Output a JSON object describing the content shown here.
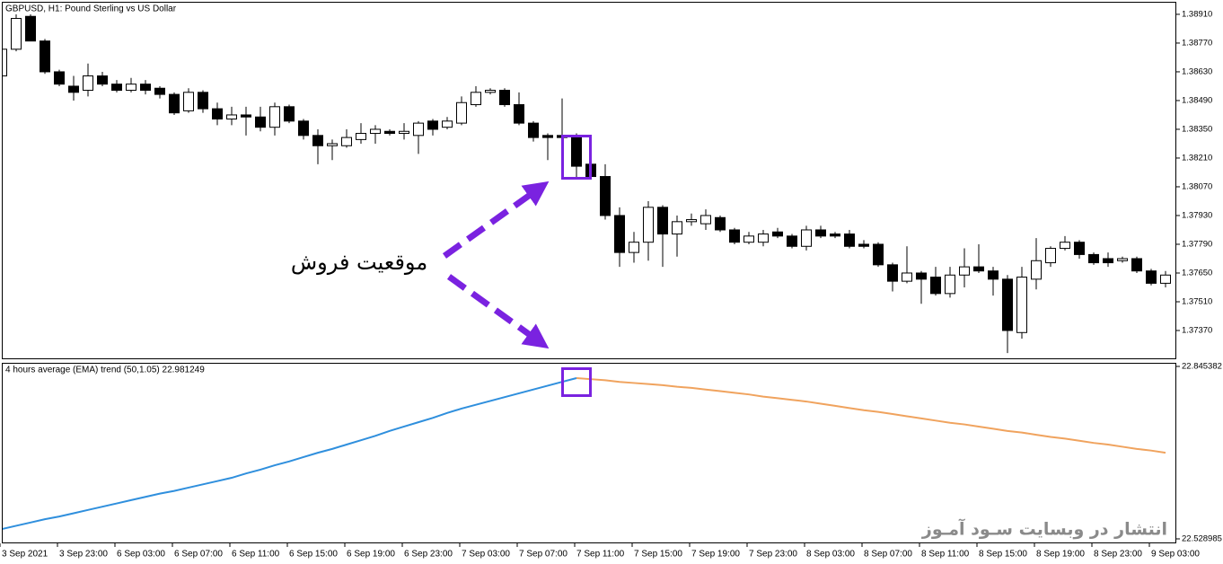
{
  "chart_data": [
    {
      "type": "candlestick",
      "title": "GBPUSD, H1:  Pound Sterling vs US Dollar",
      "annotations": [
        "موقعیت فروش",
        "انتشار در وبسایت سـود آمـوز"
      ],
      "bull_color": "#ffffff",
      "bear_color": "#000000",
      "categories": [
        "3 Sep 2021",
        null,
        null,
        null,
        "3 Sep 23:00",
        null,
        null,
        null,
        "6 Sep 03:00",
        null,
        null,
        null,
        "6 Sep 07:00",
        null,
        null,
        null,
        "6 Sep 11:00",
        null,
        null,
        null,
        "6 Sep 15:00",
        null,
        null,
        null,
        "6 Sep 19:00",
        null,
        null,
        null,
        "6 Sep 23:00",
        null,
        null,
        null,
        "7 Sep 03:00",
        null,
        null,
        null,
        "7 Sep 07:00",
        null,
        null,
        null,
        "7 Sep 11:00",
        null,
        null,
        null,
        "7 Sep 15:00",
        null,
        null,
        null,
        "7 Sep 19:00",
        null,
        null,
        null,
        "7 Sep 23:00",
        null,
        null,
        null,
        "8 Sep 03:00",
        null,
        null,
        null,
        "8 Sep 07:00",
        null,
        null,
        null,
        "8 Sep 11:00",
        null,
        null,
        null,
        "8 Sep 15:00",
        null,
        null,
        null,
        "8 Sep 19:00",
        null,
        null,
        null,
        "8 Sep 23:00",
        null,
        null,
        null,
        "9 Sep 03:00",
        null
      ],
      "open": [
        1.3861,
        1.3874,
        1.389,
        1.3878,
        1.3863,
        1.3856,
        1.3854,
        1.3861,
        1.3857,
        1.3854,
        1.3857,
        1.3855,
        1.3852,
        1.3844,
        1.3853,
        1.3845,
        1.384,
        1.3842,
        1.3841,
        1.3836,
        1.3846,
        1.3839,
        1.3832,
        1.3827,
        1.3827,
        1.383,
        1.3833,
        1.3834,
        1.3833,
        1.3832,
        1.3839,
        1.3836,
        1.3838,
        1.3847,
        1.3853,
        1.3854,
        1.3847,
        1.3838,
        1.3832,
        1.3832,
        1.3832,
        1.3818,
        1.3812,
        1.3793,
        1.3775,
        1.378,
        1.3797,
        1.3784,
        1.379,
        1.3789,
        1.3792,
        1.3786,
        1.378,
        1.378,
        1.3785,
        1.3783,
        1.3778,
        1.3786,
        1.3784,
        1.3784,
        1.3779,
        1.3779,
        1.3769,
        1.3761,
        1.3765,
        1.3763,
        1.3755,
        1.3764,
        1.3768,
        1.3766,
        1.3762,
        1.3736,
        1.3762,
        1.377,
        1.3777,
        1.378,
        1.3774,
        1.3772,
        1.3771,
        1.3772,
        1.3766,
        1.376
      ],
      "high": [
        1.3877,
        1.3891,
        1.3891,
        1.3879,
        1.3864,
        1.3861,
        1.3867,
        1.3863,
        1.3859,
        1.386,
        1.3859,
        1.3856,
        1.3853,
        1.3855,
        1.3854,
        1.3848,
        1.3846,
        1.3846,
        1.3846,
        1.3848,
        1.3847,
        1.384,
        1.3835,
        1.383,
        1.3835,
        1.3838,
        1.3837,
        1.3835,
        1.3838,
        1.3839,
        1.384,
        1.3841,
        1.3851,
        1.3856,
        1.3855,
        1.3855,
        1.3853,
        1.3839,
        1.3833,
        1.385,
        1.3833,
        1.3819,
        1.3818,
        1.3797,
        1.3785,
        1.38,
        1.3798,
        1.3793,
        1.3794,
        1.3796,
        1.3793,
        1.3787,
        1.3785,
        1.3786,
        1.3787,
        1.3784,
        1.3788,
        1.3788,
        1.3785,
        1.3786,
        1.3781,
        1.378,
        1.377,
        1.3778,
        1.3766,
        1.3768,
        1.3768,
        1.3777,
        1.3779,
        1.3768,
        1.3764,
        1.3768,
        1.3782,
        1.3778,
        1.3783,
        1.3781,
        1.3775,
        1.3775,
        1.3773,
        1.3773,
        1.3767,
        1.3766
      ],
      "low": [
        1.386,
        1.3873,
        1.3878,
        1.3862,
        1.3856,
        1.3849,
        1.3851,
        1.3856,
        1.3853,
        1.3853,
        1.3852,
        1.385,
        1.3842,
        1.3843,
        1.3843,
        1.3837,
        1.3837,
        1.3832,
        1.3834,
        1.3832,
        1.3838,
        1.383,
        1.3818,
        1.382,
        1.3826,
        1.3828,
        1.3828,
        1.3832,
        1.383,
        1.3823,
        1.3832,
        1.3835,
        1.3837,
        1.3846,
        1.3852,
        1.3846,
        1.3837,
        1.3829,
        1.382,
        1.3817,
        1.3811,
        1.3811,
        1.3791,
        1.3768,
        1.377,
        1.3771,
        1.3768,
        1.3773,
        1.3788,
        1.3786,
        1.3785,
        1.3779,
        1.3779,
        1.3778,
        1.3782,
        1.3777,
        1.3776,
        1.3782,
        1.3782,
        1.3777,
        1.3777,
        1.3768,
        1.3756,
        1.376,
        1.375,
        1.3754,
        1.3753,
        1.3758,
        1.3765,
        1.3754,
        1.3726,
        1.3733,
        1.3757,
        1.3768,
        1.3776,
        1.3772,
        1.3769,
        1.3768,
        1.377,
        1.3765,
        1.3759,
        1.3758
      ],
      "close": [
        1.3874,
        1.3889,
        1.3878,
        1.3863,
        1.3857,
        1.3853,
        1.3861,
        1.3857,
        1.3854,
        1.3857,
        1.3854,
        1.3852,
        1.3843,
        1.3853,
        1.3845,
        1.384,
        1.3842,
        1.3841,
        1.3836,
        1.3846,
        1.3839,
        1.3832,
        1.3827,
        1.3828,
        1.3831,
        1.3833,
        1.3835,
        1.3833,
        1.3834,
        1.3838,
        1.3835,
        1.3839,
        1.3848,
        1.3853,
        1.3854,
        1.3847,
        1.3838,
        1.3831,
        1.3831,
        1.3831,
        1.3817,
        1.3812,
        1.3793,
        1.3775,
        1.378,
        1.3797,
        1.3784,
        1.379,
        1.3791,
        1.3793,
        1.3786,
        1.378,
        1.3783,
        1.3784,
        1.3783,
        1.3778,
        1.3786,
        1.3783,
        1.3783,
        1.3778,
        1.3778,
        1.3769,
        1.3761,
        1.3765,
        1.3762,
        1.3755,
        1.3764,
        1.3768,
        1.3766,
        1.3762,
        1.3737,
        1.3763,
        1.3771,
        1.3777,
        1.378,
        1.3774,
        1.377,
        1.377,
        1.3772,
        1.3766,
        1.376,
        1.3764
      ],
      "ylim": [
        1.3723,
        1.38971
      ],
      "yticks": [
        {
          "value": 1.3891,
          "label": "1.38910"
        },
        {
          "value": 1.3877,
          "label": "1.38770"
        },
        {
          "value": 1.3863,
          "label": "1.38630"
        },
        {
          "value": 1.3849,
          "label": "1.38490"
        },
        {
          "value": 1.3835,
          "label": "1.38350"
        },
        {
          "value": 1.3821,
          "label": "1.38210"
        },
        {
          "value": 1.3807,
          "label": "1.38070"
        },
        {
          "value": 1.3793,
          "label": "1.37930"
        },
        {
          "value": 1.3779,
          "label": "1.37790"
        },
        {
          "value": 1.3765,
          "label": "1.37650"
        },
        {
          "value": 1.3751,
          "label": "1.37510"
        },
        {
          "value": 1.3737,
          "label": "1.37370"
        }
      ]
    },
    {
      "type": "line",
      "title": "4 hours average (EMA) trend (50,1.05) 22.981249",
      "series": [
        {
          "color": "#2f8fdd",
          "values": [
            22.547,
            22.553,
            22.559,
            22.565,
            22.57,
            22.576,
            22.582,
            22.588,
            22.594,
            22.6,
            22.606,
            22.612,
            22.617,
            22.623,
            22.629,
            22.635,
            22.641,
            22.649,
            22.656,
            22.664,
            22.671,
            22.679,
            22.687,
            22.694,
            22.702,
            22.71,
            22.718,
            22.727,
            22.735,
            22.743,
            22.751,
            22.76,
            22.768,
            22.775,
            22.782,
            22.789,
            22.796,
            22.803,
            22.81,
            22.817,
            22.824,
            null,
            null,
            null,
            null,
            null,
            null,
            null,
            null,
            null,
            null,
            null,
            null,
            null,
            null,
            null,
            null,
            null,
            null,
            null,
            null,
            null,
            null,
            null,
            null,
            null,
            null,
            null,
            null,
            null,
            null,
            null,
            null,
            null,
            null,
            null,
            null,
            null,
            null,
            null,
            null,
            null
          ]
        },
        {
          "color": "#f0a35e",
          "values": [
            null,
            null,
            null,
            null,
            null,
            null,
            null,
            null,
            null,
            null,
            null,
            null,
            null,
            null,
            null,
            null,
            null,
            null,
            null,
            null,
            null,
            null,
            null,
            null,
            null,
            null,
            null,
            null,
            null,
            null,
            null,
            null,
            null,
            null,
            null,
            null,
            null,
            null,
            null,
            null,
            22.824,
            22.822,
            22.82,
            22.817,
            22.815,
            22.813,
            22.811,
            22.808,
            22.806,
            22.803,
            22.8,
            22.797,
            22.794,
            22.79,
            22.787,
            22.784,
            22.781,
            22.777,
            22.773,
            22.769,
            22.765,
            22.762,
            22.758,
            22.754,
            22.75,
            22.746,
            22.742,
            22.739,
            22.735,
            22.731,
            22.727,
            22.724,
            22.72,
            22.716,
            22.713,
            22.709,
            22.705,
            22.702,
            22.698,
            22.694,
            22.691,
            22.687
          ]
        }
      ],
      "ylim": [
        22.528985,
        22.845382
      ],
      "yticks": [
        22.528985,
        22.845382
      ]
    }
  ]
}
